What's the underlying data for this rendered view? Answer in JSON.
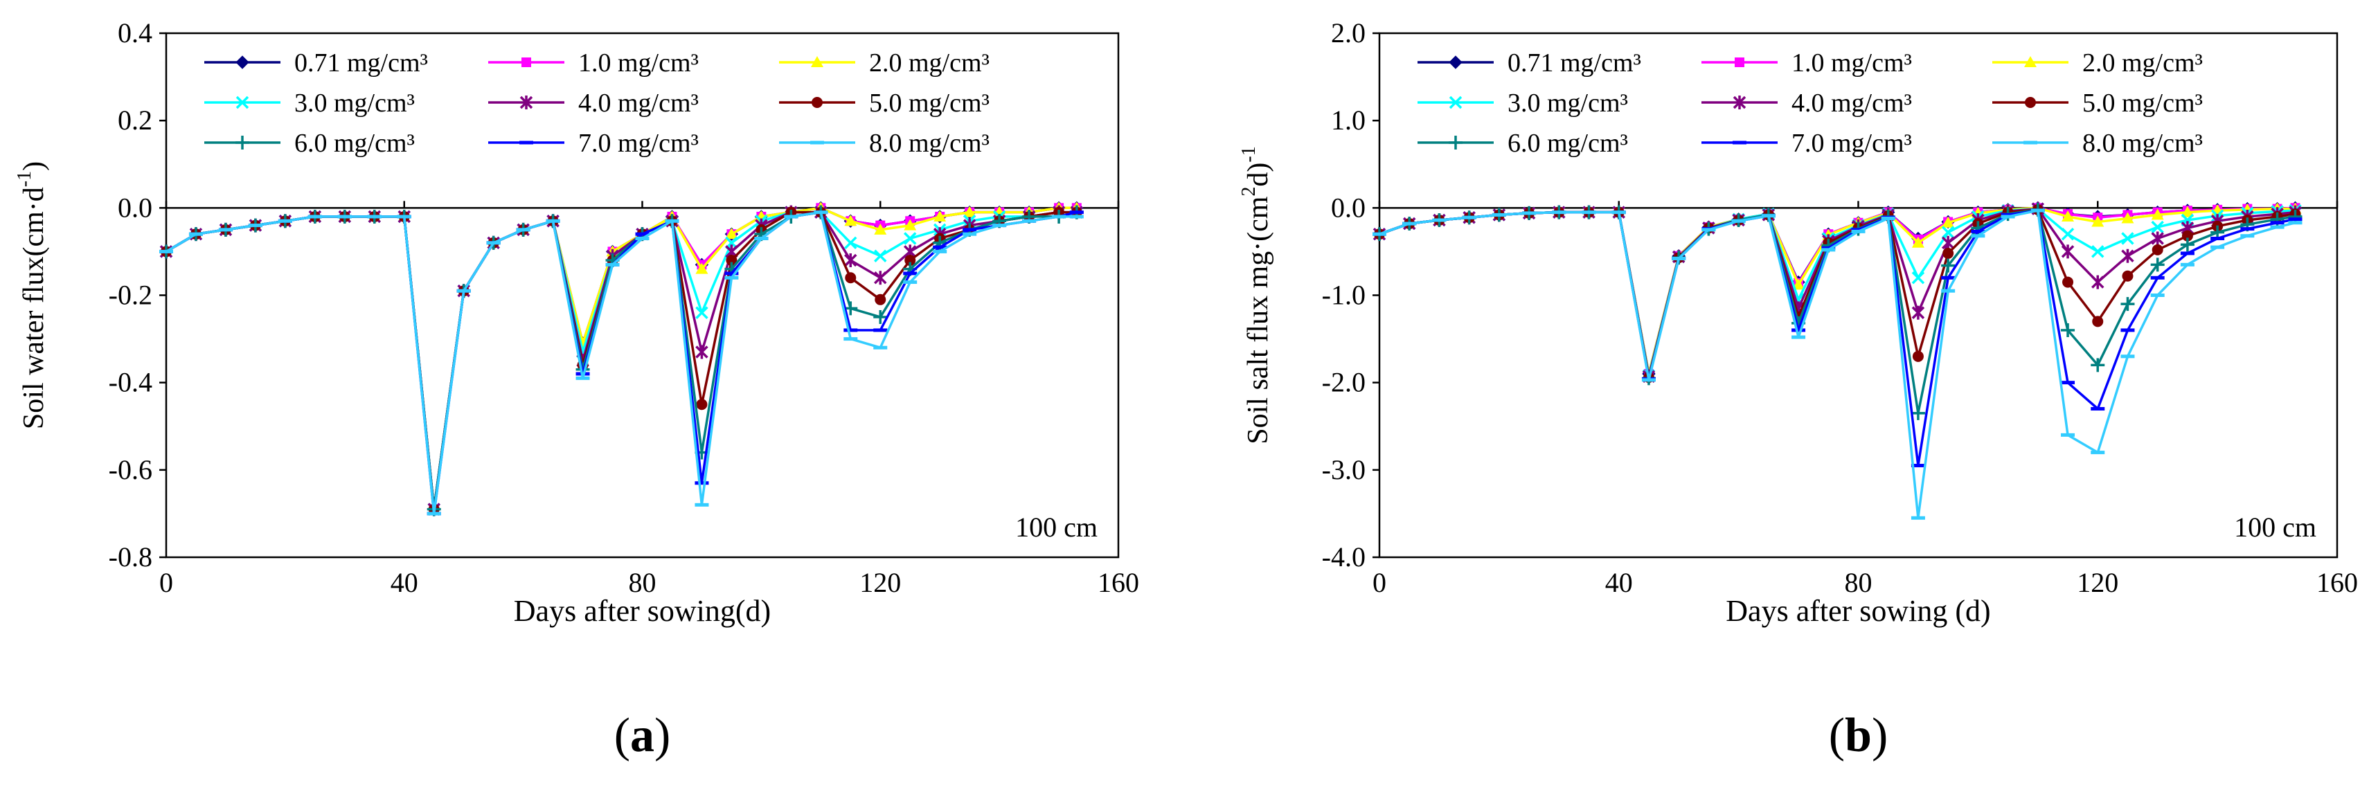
{
  "chart_data": [
    {
      "type": "line",
      "panel_label": "(a)",
      "xlabel": "Days after sowing(d)",
      "ylabel": "Soil water flux(cm·d",
      "ylabel_sup": "-1",
      "ylabel_close": ")",
      "xlim": [
        0,
        160
      ],
      "ylim": [
        -0.8,
        0.4
      ],
      "xticks": [
        0,
        40,
        80,
        120,
        160
      ],
      "xtick_labels": [
        "0",
        "40",
        "80",
        "120",
        "160"
      ],
      "yticks": [
        0.4,
        0.2,
        0.0,
        -0.2,
        -0.4,
        -0.6,
        -0.8
      ],
      "ytick_labels": [
        "0.4",
        "0.2",
        "0.0",
        "-0.2",
        "-0.4",
        "-0.6",
        "-0.8"
      ],
      "annotation": "100 cm",
      "grid": false,
      "legend_position": "top",
      "x": [
        0,
        5,
        10,
        15,
        20,
        25,
        30,
        35,
        40,
        45,
        50,
        55,
        60,
        65,
        70,
        75,
        80,
        85,
        90,
        95,
        100,
        105,
        110,
        115,
        120,
        125,
        130,
        135,
        140,
        145,
        150,
        153
      ],
      "series": [
        {
          "name": "0.71 mg/cm³",
          "values": [
            -0.1,
            -0.06,
            -0.05,
            -0.04,
            -0.03,
            -0.02,
            -0.02,
            -0.02,
            -0.02,
            -0.69,
            -0.19,
            -0.08,
            -0.05,
            -0.03,
            -0.31,
            -0.1,
            -0.06,
            -0.02,
            -0.13,
            -0.06,
            -0.02,
            -0.01,
            0.0,
            -0.03,
            -0.04,
            -0.03,
            -0.02,
            -0.01,
            -0.01,
            -0.01,
            0.0,
            0.0
          ]
        },
        {
          "name": "1.0 mg/cm³",
          "values": [
            -0.1,
            -0.06,
            -0.05,
            -0.04,
            -0.03,
            -0.02,
            -0.02,
            -0.02,
            -0.02,
            -0.69,
            -0.19,
            -0.08,
            -0.05,
            -0.03,
            -0.31,
            -0.1,
            -0.06,
            -0.02,
            -0.13,
            -0.06,
            -0.02,
            -0.01,
            0.0,
            -0.03,
            -0.04,
            -0.03,
            -0.02,
            -0.01,
            -0.01,
            -0.01,
            0.0,
            0.0
          ]
        },
        {
          "name": "2.0 mg/cm³",
          "values": [
            -0.1,
            -0.06,
            -0.05,
            -0.04,
            -0.03,
            -0.02,
            -0.02,
            -0.02,
            -0.02,
            -0.69,
            -0.19,
            -0.08,
            -0.05,
            -0.03,
            -0.31,
            -0.1,
            -0.06,
            -0.02,
            -0.14,
            -0.06,
            -0.02,
            -0.01,
            0.0,
            -0.03,
            -0.05,
            -0.04,
            -0.02,
            -0.01,
            -0.01,
            -0.01,
            0.0,
            0.0
          ]
        },
        {
          "name": "3.0 mg/cm³",
          "values": [
            -0.1,
            -0.06,
            -0.05,
            -0.04,
            -0.03,
            -0.02,
            -0.02,
            -0.02,
            -0.02,
            -0.69,
            -0.19,
            -0.08,
            -0.05,
            -0.03,
            -0.33,
            -0.11,
            -0.06,
            -0.03,
            -0.24,
            -0.08,
            -0.03,
            -0.01,
            -0.01,
            -0.08,
            -0.11,
            -0.07,
            -0.05,
            -0.03,
            -0.02,
            -0.02,
            -0.01,
            -0.01
          ]
        },
        {
          "name": "4.0 mg/cm³",
          "values": [
            -0.1,
            -0.06,
            -0.05,
            -0.04,
            -0.03,
            -0.02,
            -0.02,
            -0.02,
            -0.02,
            -0.69,
            -0.19,
            -0.08,
            -0.05,
            -0.03,
            -0.35,
            -0.11,
            -0.06,
            -0.03,
            -0.33,
            -0.1,
            -0.04,
            -0.01,
            -0.01,
            -0.12,
            -0.16,
            -0.1,
            -0.06,
            -0.04,
            -0.03,
            -0.02,
            -0.01,
            -0.01
          ]
        },
        {
          "name": "5.0 mg/cm³",
          "values": [
            -0.1,
            -0.06,
            -0.05,
            -0.04,
            -0.03,
            -0.02,
            -0.02,
            -0.02,
            -0.02,
            -0.69,
            -0.19,
            -0.08,
            -0.05,
            -0.03,
            -0.36,
            -0.12,
            -0.06,
            -0.03,
            -0.45,
            -0.12,
            -0.05,
            -0.01,
            -0.01,
            -0.16,
            -0.21,
            -0.12,
            -0.07,
            -0.05,
            -0.03,
            -0.02,
            -0.01,
            -0.01
          ]
        },
        {
          "name": "6.0 mg/cm³",
          "values": [
            -0.1,
            -0.06,
            -0.05,
            -0.04,
            -0.03,
            -0.02,
            -0.02,
            -0.02,
            -0.02,
            -0.69,
            -0.19,
            -0.08,
            -0.05,
            -0.03,
            -0.37,
            -0.12,
            -0.06,
            -0.03,
            -0.56,
            -0.14,
            -0.06,
            -0.02,
            -0.01,
            -0.23,
            -0.25,
            -0.14,
            -0.08,
            -0.05,
            -0.03,
            -0.02,
            -0.02,
            -0.01
          ]
        },
        {
          "name": "7.0 mg/cm³",
          "values": [
            -0.1,
            -0.06,
            -0.05,
            -0.04,
            -0.03,
            -0.02,
            -0.02,
            -0.02,
            -0.02,
            -0.7,
            -0.19,
            -0.08,
            -0.05,
            -0.03,
            -0.38,
            -0.13,
            -0.06,
            -0.03,
            -0.63,
            -0.15,
            -0.07,
            -0.02,
            -0.01,
            -0.28,
            -0.28,
            -0.15,
            -0.09,
            -0.05,
            -0.04,
            -0.03,
            -0.02,
            -0.01
          ]
        },
        {
          "name": "8.0 mg/cm³",
          "values": [
            -0.1,
            -0.06,
            -0.05,
            -0.04,
            -0.03,
            -0.02,
            -0.02,
            -0.02,
            -0.02,
            -0.7,
            -0.19,
            -0.08,
            -0.05,
            -0.03,
            -0.39,
            -0.13,
            -0.07,
            -0.03,
            -0.68,
            -0.16,
            -0.07,
            -0.02,
            -0.01,
            -0.3,
            -0.32,
            -0.17,
            -0.1,
            -0.06,
            -0.04,
            -0.03,
            -0.02,
            -0.02
          ]
        }
      ]
    },
    {
      "type": "line",
      "panel_label": "(b)",
      "xlabel": "Days after sowing (d)",
      "ylabel": "Soil salt flux mg·(cm",
      "ylabel_sup": "2",
      "ylabel_close": "d)",
      "ylabel_sup2": "-1",
      "xlim": [
        0,
        160
      ],
      "ylim": [
        -4.0,
        2.0
      ],
      "xticks": [
        0,
        40,
        80,
        120,
        160
      ],
      "xtick_labels": [
        "0",
        "40",
        "80",
        "120",
        "160"
      ],
      "yticks": [
        2.0,
        1.0,
        0.0,
        -1.0,
        -2.0,
        -3.0,
        -4.0
      ],
      "ytick_labels": [
        "2.0",
        "1.0",
        "0.0",
        "-1.0",
        "-2.0",
        "-3.0",
        "-4.0"
      ],
      "annotation": "100 cm",
      "grid": false,
      "legend_position": "top",
      "x": [
        0,
        5,
        10,
        15,
        20,
        25,
        30,
        35,
        40,
        45,
        50,
        55,
        60,
        65,
        70,
        75,
        80,
        85,
        90,
        95,
        100,
        105,
        110,
        115,
        120,
        125,
        130,
        135,
        140,
        145,
        150,
        153
      ],
      "series": [
        {
          "name": "0.71 mg/cm³",
          "values": [
            -0.3,
            -0.18,
            -0.14,
            -0.11,
            -0.08,
            -0.06,
            -0.05,
            -0.05,
            -0.05,
            -1.9,
            -0.55,
            -0.22,
            -0.13,
            -0.07,
            -0.85,
            -0.3,
            -0.17,
            -0.05,
            -0.35,
            -0.16,
            -0.05,
            -0.02,
            0.0,
            -0.07,
            -0.1,
            -0.08,
            -0.05,
            -0.03,
            -0.02,
            -0.01,
            -0.01,
            0.0
          ]
        },
        {
          "name": "1.0 mg/cm³",
          "values": [
            -0.3,
            -0.18,
            -0.14,
            -0.11,
            -0.08,
            -0.06,
            -0.05,
            -0.05,
            -0.05,
            -1.9,
            -0.55,
            -0.22,
            -0.13,
            -0.07,
            -0.86,
            -0.3,
            -0.17,
            -0.05,
            -0.36,
            -0.16,
            -0.05,
            -0.02,
            0.0,
            -0.07,
            -0.11,
            -0.08,
            -0.05,
            -0.03,
            -0.02,
            -0.01,
            -0.01,
            0.0
          ]
        },
        {
          "name": "2.0 mg/cm³",
          "values": [
            -0.3,
            -0.18,
            -0.14,
            -0.11,
            -0.08,
            -0.06,
            -0.05,
            -0.05,
            -0.05,
            -1.9,
            -0.55,
            -0.22,
            -0.13,
            -0.07,
            -0.88,
            -0.31,
            -0.17,
            -0.06,
            -0.4,
            -0.17,
            -0.06,
            -0.02,
            0.0,
            -0.1,
            -0.16,
            -0.12,
            -0.08,
            -0.05,
            -0.03,
            -0.02,
            -0.01,
            -0.01
          ]
        },
        {
          "name": "3.0 mg/cm³",
          "values": [
            -0.3,
            -0.18,
            -0.14,
            -0.11,
            -0.08,
            -0.06,
            -0.05,
            -0.05,
            -0.05,
            -1.92,
            -0.56,
            -0.23,
            -0.13,
            -0.07,
            -1.05,
            -0.35,
            -0.2,
            -0.07,
            -0.8,
            -0.28,
            -0.1,
            -0.03,
            -0.01,
            -0.3,
            -0.5,
            -0.35,
            -0.22,
            -0.14,
            -0.09,
            -0.06,
            -0.04,
            -0.03
          ]
        },
        {
          "name": "4.0 mg/cm³",
          "values": [
            -0.3,
            -0.18,
            -0.14,
            -0.11,
            -0.08,
            -0.06,
            -0.05,
            -0.05,
            -0.05,
            -1.93,
            -0.56,
            -0.23,
            -0.14,
            -0.08,
            -1.15,
            -0.38,
            -0.21,
            -0.08,
            -1.2,
            -0.4,
            -0.14,
            -0.04,
            -0.01,
            -0.5,
            -0.85,
            -0.55,
            -0.35,
            -0.23,
            -0.15,
            -0.1,
            -0.07,
            -0.05
          ]
        },
        {
          "name": "5.0 mg/cm³",
          "values": [
            -0.3,
            -0.18,
            -0.14,
            -0.11,
            -0.08,
            -0.06,
            -0.05,
            -0.05,
            -0.05,
            -1.94,
            -0.57,
            -0.23,
            -0.14,
            -0.08,
            -1.25,
            -0.4,
            -0.23,
            -0.09,
            -1.7,
            -0.52,
            -0.18,
            -0.05,
            -0.02,
            -0.85,
            -1.3,
            -0.78,
            -0.48,
            -0.32,
            -0.21,
            -0.14,
            -0.1,
            -0.07
          ]
        },
        {
          "name": "6.0 mg/cm³",
          "values": [
            -0.3,
            -0.18,
            -0.14,
            -0.11,
            -0.08,
            -0.06,
            -0.05,
            -0.05,
            -0.05,
            -1.95,
            -0.57,
            -0.24,
            -0.14,
            -0.08,
            -1.32,
            -0.43,
            -0.24,
            -0.1,
            -2.35,
            -0.66,
            -0.23,
            -0.07,
            -0.02,
            -1.4,
            -1.8,
            -1.1,
            -0.65,
            -0.42,
            -0.28,
            -0.19,
            -0.13,
            -0.1
          ]
        },
        {
          "name": "7.0 mg/cm³",
          "values": [
            -0.3,
            -0.18,
            -0.14,
            -0.11,
            -0.08,
            -0.06,
            -0.05,
            -0.05,
            -0.05,
            -1.96,
            -0.58,
            -0.24,
            -0.15,
            -0.09,
            -1.4,
            -0.46,
            -0.25,
            -0.11,
            -2.95,
            -0.8,
            -0.27,
            -0.08,
            -0.03,
            -2.0,
            -2.3,
            -1.4,
            -0.8,
            -0.52,
            -0.35,
            -0.24,
            -0.17,
            -0.13
          ]
        },
        {
          "name": "8.0 mg/cm³",
          "values": [
            -0.3,
            -0.18,
            -0.14,
            -0.11,
            -0.08,
            -0.06,
            -0.05,
            -0.05,
            -0.05,
            -1.97,
            -0.58,
            -0.25,
            -0.15,
            -0.09,
            -1.48,
            -0.48,
            -0.27,
            -0.12,
            -3.55,
            -0.95,
            -0.32,
            -0.1,
            -0.03,
            -2.6,
            -2.8,
            -1.7,
            -1.0,
            -0.65,
            -0.45,
            -0.32,
            -0.22,
            -0.17
          ]
        }
      ]
    }
  ],
  "series_styles": [
    {
      "color": "#000080",
      "marker": "diamond"
    },
    {
      "color": "#FF00FF",
      "marker": "square"
    },
    {
      "color": "#FFFF00",
      "marker": "triangle"
    },
    {
      "color": "#00FFFF",
      "marker": "x"
    },
    {
      "color": "#800080",
      "marker": "star"
    },
    {
      "color": "#800000",
      "marker": "circle"
    },
    {
      "color": "#008080",
      "marker": "plus"
    },
    {
      "color": "#0000FF",
      "marker": "dash"
    },
    {
      "color": "#33CCFF",
      "marker": "dash"
    }
  ]
}
